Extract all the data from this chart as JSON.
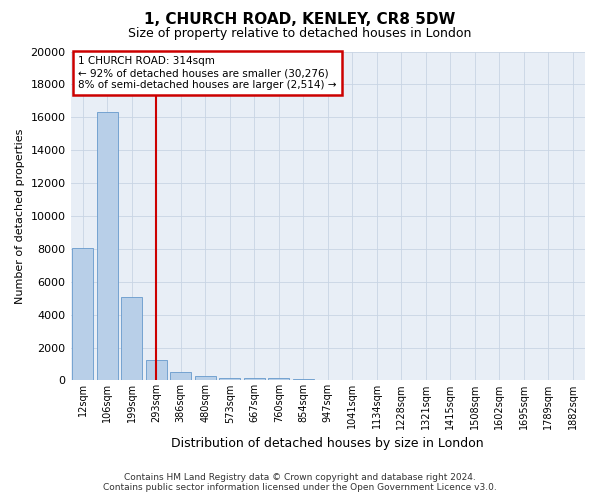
{
  "title": "1, CHURCH ROAD, KENLEY, CR8 5DW",
  "subtitle": "Size of property relative to detached houses in London",
  "xlabel": "Distribution of detached houses by size in London",
  "ylabel": "Number of detached properties",
  "footer_line1": "Contains HM Land Registry data © Crown copyright and database right 2024.",
  "footer_line2": "Contains public sector information licensed under the Open Government Licence v3.0.",
  "annotation_line1": "1 CHURCH ROAD: 314sqm",
  "annotation_line2": "← 92% of detached houses are smaller (30,276)",
  "annotation_line3": "8% of semi-detached houses are larger (2,514) →",
  "bar_color": "#b8cfe8",
  "bar_edge_color": "#6699cc",
  "vline_color": "#cc0000",
  "annotation_box_edgecolor": "#cc0000",
  "grid_color": "#c8d4e4",
  "bg_color": "#e8eef6",
  "categories": [
    "12sqm",
    "106sqm",
    "199sqm",
    "293sqm",
    "386sqm",
    "480sqm",
    "573sqm",
    "667sqm",
    "760sqm",
    "854sqm",
    "947sqm",
    "1041sqm",
    "1134sqm",
    "1228sqm",
    "1321sqm",
    "1415sqm",
    "1508sqm",
    "1602sqm",
    "1695sqm",
    "1789sqm",
    "1882sqm"
  ],
  "values": [
    8050,
    16300,
    5100,
    1250,
    520,
    250,
    175,
    140,
    120,
    100,
    0,
    0,
    0,
    0,
    0,
    0,
    0,
    0,
    0,
    0,
    0
  ],
  "vline_x_index": 3.0,
  "ylim": [
    0,
    20000
  ],
  "yticks": [
    0,
    2000,
    4000,
    6000,
    8000,
    10000,
    12000,
    14000,
    16000,
    18000,
    20000
  ]
}
